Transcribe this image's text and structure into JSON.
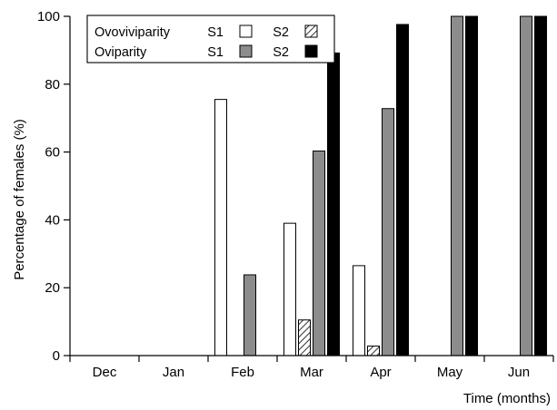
{
  "chart_data": {
    "type": "bar",
    "xlabel": "Time (months)",
    "ylabel": "Percentage of females (%)",
    "ylim": [
      0,
      100
    ],
    "yticks": [
      0,
      20,
      40,
      60,
      80,
      100
    ],
    "categories": [
      "Dec",
      "Jan",
      "Feb",
      "Mar",
      "Apr",
      "May",
      "Jun"
    ],
    "grid": false,
    "legend_position": "top-left",
    "legend": {
      "rows": [
        {
          "group": "Ovoviviparity",
          "items": [
            {
              "label": "S1",
              "series": 0
            },
            {
              "label": "S2",
              "series": 1
            }
          ]
        },
        {
          "group": "Oviparity",
          "items": [
            {
              "label": "S1",
              "series": 2
            },
            {
              "label": "S2",
              "series": 3
            }
          ]
        }
      ]
    },
    "series": [
      {
        "name": "Ovoviviparity S1",
        "fill": "white",
        "color": "#ffffff",
        "values": [
          0,
          0,
          75.5,
          39,
          26.5,
          0,
          0
        ]
      },
      {
        "name": "Ovoviviparity S2",
        "fill": "hatched",
        "color": "#ffffff",
        "values": [
          0,
          0,
          0,
          10.5,
          2.8,
          0,
          0
        ]
      },
      {
        "name": "Oviparity S1",
        "fill": "grey",
        "color": "#8c8c8c",
        "values": [
          0,
          0,
          23.8,
          60.3,
          72.8,
          100,
          100
        ]
      },
      {
        "name": "Oviparity S2",
        "fill": "black",
        "color": "#000000",
        "values": [
          0,
          0,
          0,
          89.2,
          97.6,
          100,
          100
        ]
      }
    ]
  }
}
